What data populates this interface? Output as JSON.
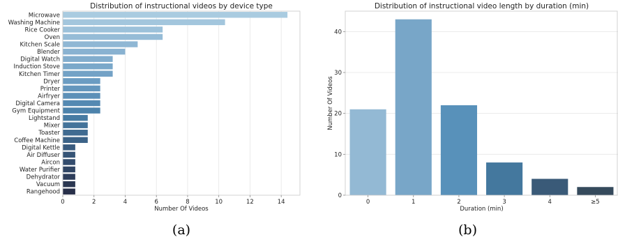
{
  "chart_data": [
    {
      "type": "bar",
      "orientation": "horizontal",
      "title": "Distribution of instructional videos by device type",
      "xlabel": "Number Of Videos",
      "ylabel": "",
      "caption": "(a)",
      "categories": [
        "Microwave",
        "Washing Machine",
        "Rice Cooker",
        "Oven",
        "Kitchen Scale",
        "Blender",
        "Digital Watch",
        "Induction Stove",
        "Kitchen Timer",
        "Dryer",
        "Printer",
        "Airfryer",
        "Digital Camera",
        "Gym Equipment",
        "Lightstand",
        "Mixer",
        "Toaster",
        "Coffee Machine",
        "Digital Kettle",
        "Air Diffuser",
        "Aircon",
        "Water Purifier",
        "Dehydrator",
        "Vacuum",
        "Rangehood"
      ],
      "values": [
        14.4,
        10.4,
        6.4,
        6.4,
        4.8,
        4.0,
        3.2,
        3.2,
        3.2,
        2.4,
        2.4,
        2.4,
        2.4,
        2.4,
        1.6,
        1.6,
        1.6,
        1.6,
        0.8,
        0.8,
        0.8,
        0.8,
        0.8,
        0.8,
        0.8
      ],
      "xlim": [
        0,
        15.2
      ],
      "xticks": [
        0,
        2,
        4,
        6,
        8,
        10,
        12,
        14
      ],
      "grid": true,
      "colors": [
        "#a9cbe0",
        "#a3c6dd",
        "#9cc1da",
        "#96bcd7",
        "#8fb7d4",
        "#89b2d1",
        "#82adcd",
        "#7aa8ca",
        "#73a2c6",
        "#6b9cc2",
        "#6496bd",
        "#5c90b8",
        "#5489b2",
        "#4c82ab",
        "#477ba3",
        "#43739a",
        "#406b91",
        "#3c6388",
        "#395b7f",
        "#365476",
        "#334c6d",
        "#304564",
        "#2e3e5b",
        "#2b3752",
        "#28304a"
      ]
    },
    {
      "type": "bar",
      "orientation": "vertical",
      "title": "Distribution of instructional video length by duration (min)",
      "xlabel": "Duration (min)",
      "ylabel": "Number Of Videos",
      "caption": "(b)",
      "categories": [
        "0",
        "1",
        "2",
        "3",
        "4",
        "≥5"
      ],
      "values": [
        21,
        43,
        22,
        8,
        4,
        2
      ],
      "ylim": [
        0,
        45
      ],
      "yticks": [
        0,
        10,
        20,
        30,
        40
      ],
      "grid": true,
      "colors": [
        "#93b9d4",
        "#78a6c8",
        "#5891ba",
        "#44789e",
        "#3a5a78",
        "#354a5c"
      ]
    }
  ]
}
